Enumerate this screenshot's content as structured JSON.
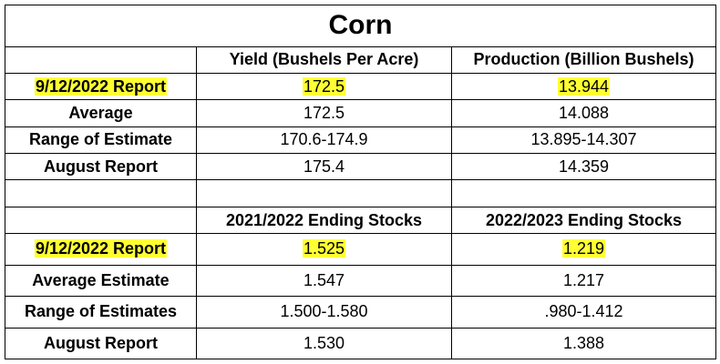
{
  "title": "Corn",
  "colors": {
    "highlight": "#ffff33",
    "border": "#000000"
  },
  "section1": {
    "headers": [
      "Yield (Bushels Per Acre)",
      "Production (Billion Bushels)"
    ],
    "rows": [
      {
        "label": "9/12/2022 Report",
        "values": [
          "172.5",
          "13.944"
        ]
      },
      {
        "label": "Average",
        "values": [
          "172.5",
          "14.088"
        ]
      },
      {
        "label": "Range of Estimate",
        "values": [
          "170.6-174.9",
          "13.895-14.307"
        ]
      },
      {
        "label": "August Report",
        "values": [
          "175.4",
          "14.359"
        ]
      }
    ]
  },
  "section2": {
    "headers": [
      "2021/2022 Ending Stocks",
      "2022/2023 Ending Stocks"
    ],
    "rows": [
      {
        "label": "9/12/2022 Report",
        "values": [
          "1.525",
          "1.219"
        ]
      },
      {
        "label": "Average Estimate",
        "values": [
          "1.547",
          "1.217"
        ]
      },
      {
        "label": "Range of Estimates",
        "values": [
          "1.500-1.580",
          ".980-1.412"
        ]
      },
      {
        "label": "August Report",
        "values": [
          "1.530",
          "1.388"
        ]
      }
    ]
  }
}
